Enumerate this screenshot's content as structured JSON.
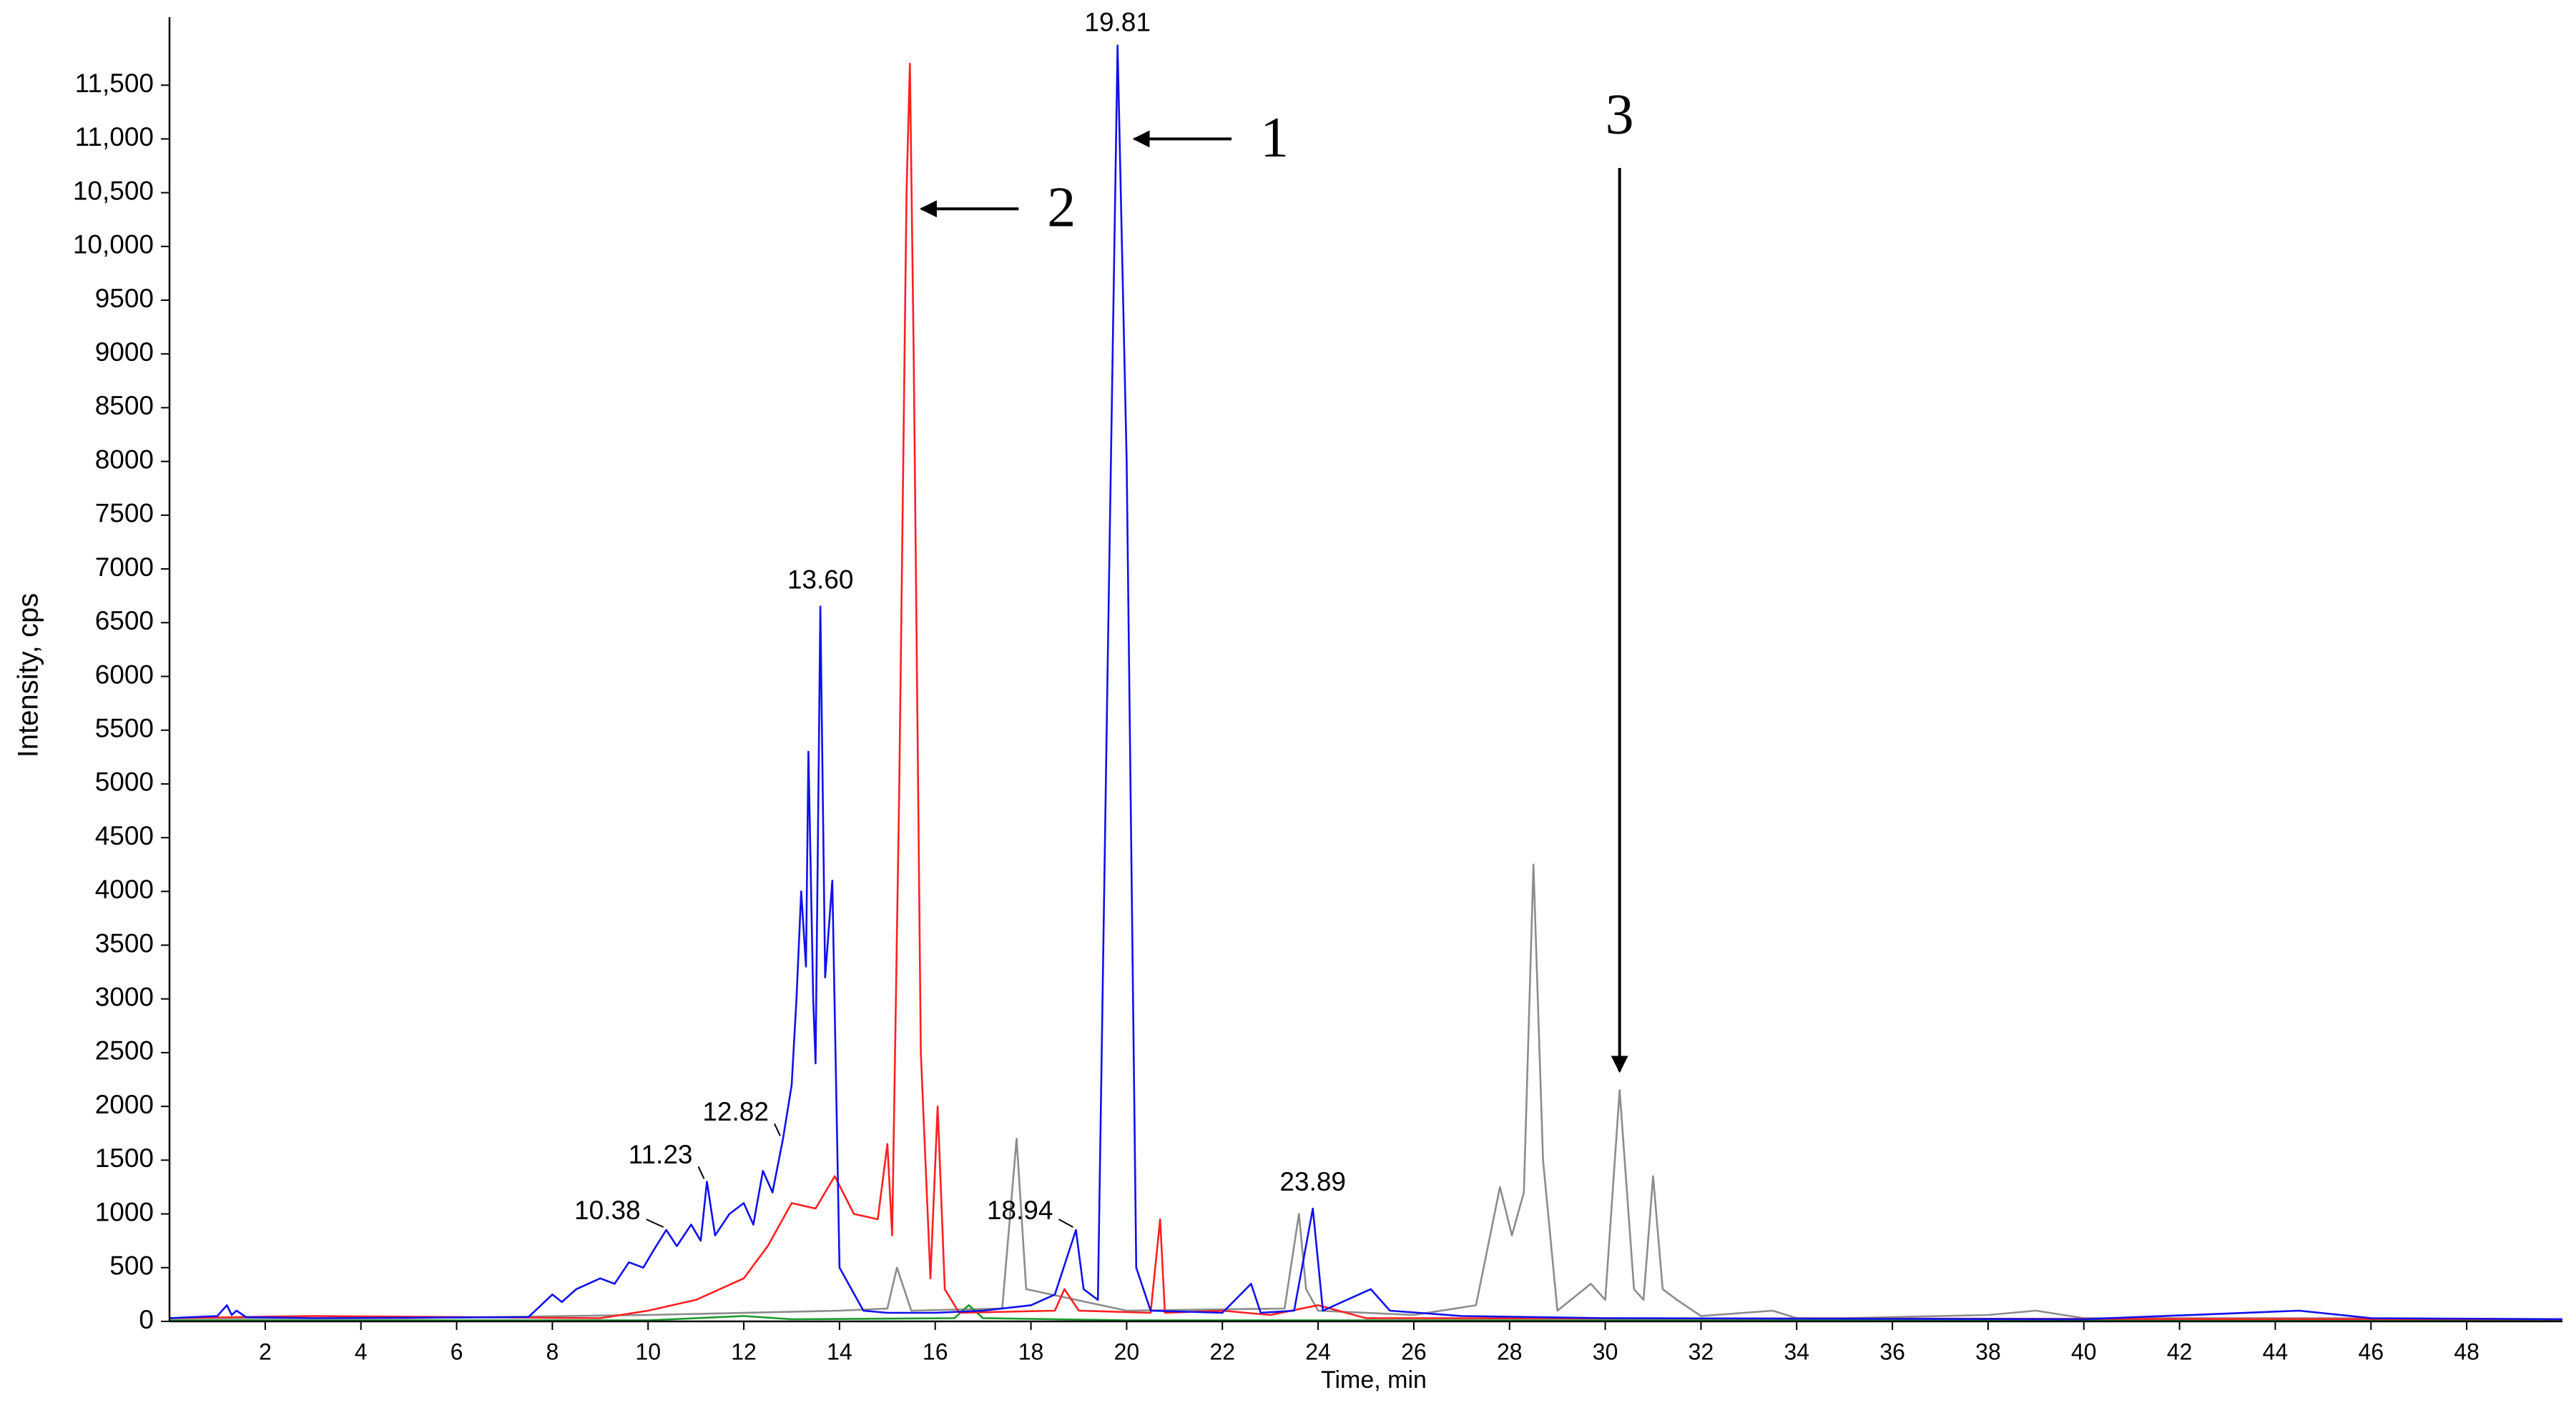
{
  "chart_data": {
    "type": "line",
    "xlabel": "Time, min",
    "ylabel": "Intensity, cps",
    "xlim": [
      0,
      50
    ],
    "ylim": [
      0,
      12000
    ],
    "xticks": [
      2,
      4,
      6,
      8,
      10,
      12,
      14,
      16,
      18,
      20,
      22,
      24,
      26,
      28,
      30,
      32,
      34,
      36,
      38,
      40,
      42,
      44,
      46,
      48
    ],
    "yticks": [
      0,
      500,
      1000,
      1500,
      2000,
      2500,
      3000,
      3500,
      4000,
      4500,
      5000,
      5500,
      6000,
      6500,
      7000,
      7500,
      8000,
      8500,
      9000,
      9500,
      {
        "value": 10000,
        "label": "10,000"
      },
      {
        "value": 10500,
        "label": "10,500"
      },
      {
        "value": 11000,
        "label": "11,000"
      },
      {
        "value": 11500,
        "label": "11,500"
      }
    ],
    "series": [
      {
        "color": "#8c8c8c",
        "x": [
          0,
          5,
          10,
          14,
          15.0,
          15.2,
          15.5,
          17.4,
          17.7,
          17.9,
          20,
          23.3,
          23.6,
          23.75,
          24,
          26,
          27.3,
          27.8,
          28.05,
          28.3,
          28.5,
          28.7,
          29.0,
          29.7,
          30.0,
          30.3,
          30.6,
          30.8,
          31.0,
          31.2,
          31.5,
          32,
          33.5,
          34,
          35,
          38,
          39,
          40,
          45,
          50
        ],
        "values": [
          30,
          30,
          60,
          100,
          120,
          500,
          100,
          120,
          1700,
          300,
          100,
          120,
          1000,
          300,
          100,
          60,
          150,
          1250,
          800,
          1200,
          4250,
          1500,
          100,
          350,
          200,
          2150,
          300,
          200,
          1350,
          300,
          200,
          50,
          100,
          30,
          30,
          60,
          100,
          30,
          30,
          20
        ]
      },
      {
        "color": "#1a9a2a",
        "x": [
          0,
          10,
          12,
          13,
          16.4,
          16.7,
          17.0,
          20,
          50
        ],
        "values": [
          10,
          10,
          50,
          20,
          30,
          150,
          30,
          10,
          10
        ]
      },
      {
        "color": "#ff2020",
        "x": [
          0,
          3,
          9,
          10,
          11,
          12,
          12.5,
          13,
          13.5,
          13.9,
          14.3,
          14.8,
          15.0,
          15.1,
          15.25,
          15.4,
          15.47,
          15.55,
          15.7,
          15.9,
          16.05,
          16.2,
          16.5,
          18.5,
          18.7,
          19,
          20.5,
          20.7,
          20.8,
          22,
          23,
          24,
          25,
          50
        ],
        "values": [
          30,
          50,
          30,
          100,
          200,
          400,
          700,
          1100,
          1050,
          1350,
          1000,
          950,
          1650,
          800,
          5000,
          10500,
          11700,
          9000,
          2500,
          400,
          2000,
          300,
          80,
          100,
          300,
          100,
          80,
          950,
          80,
          100,
          60,
          150,
          30,
          20
        ]
      },
      {
        "color": "#1010ee",
        "x": [
          0,
          1.0,
          1.2,
          1.3,
          1.4,
          1.6,
          3,
          7.5,
          8.0,
          8.2,
          8.5,
          9.0,
          9.3,
          9.6,
          9.9,
          10.1,
          10.38,
          10.6,
          10.9,
          11.1,
          11.23,
          11.4,
          11.7,
          12.0,
          12.2,
          12.4,
          12.6,
          12.82,
          13.0,
          13.1,
          13.2,
          13.3,
          13.35,
          13.45,
          13.5,
          13.6,
          13.7,
          13.75,
          13.85,
          14.0,
          14.5,
          15,
          16,
          17,
          18,
          18.5,
          18.94,
          19.1,
          19.4,
          19.6,
          19.81,
          20.0,
          20.2,
          20.5,
          22,
          22.6,
          22.8,
          23.5,
          23.89,
          24.1,
          25.1,
          25.5,
          27,
          30,
          40,
          44.5,
          46,
          50
        ],
        "values": [
          30,
          50,
          150,
          60,
          100,
          40,
          30,
          40,
          250,
          180,
          300,
          400,
          350,
          550,
          500,
          650,
          850,
          700,
          900,
          750,
          1300,
          800,
          1000,
          1100,
          900,
          1400,
          1200,
          1700,
          2200,
          3000,
          4000,
          3300,
          5300,
          3000,
          2400,
          6650,
          3200,
          3500,
          4100,
          500,
          100,
          80,
          80,
          100,
          150,
          250,
          850,
          300,
          200,
          6000,
          11870,
          8000,
          500,
          100,
          80,
          350,
          80,
          100,
          1050,
          100,
          300,
          100,
          50,
          30,
          20,
          100,
          30,
          20
        ]
      }
    ],
    "annotations": [
      {
        "x": 10.38,
        "y": 850,
        "label": "10.38"
      },
      {
        "x": 11.23,
        "y": 1300,
        "label": "11.23"
      },
      {
        "x": 12.82,
        "y": 1700,
        "label": "12.82"
      },
      {
        "x": 13.6,
        "y": 6650,
        "label": "13.60"
      },
      {
        "x": 18.94,
        "y": 850,
        "label": "18.94"
      },
      {
        "x": 19.81,
        "y": 11870,
        "label": "19.81"
      },
      {
        "x": 23.89,
        "y": 1050,
        "label": "23.89"
      }
    ],
    "callouts": [
      {
        "text": "1",
        "x": 20.1,
        "y": 11000
      },
      {
        "text": "2",
        "x": 15.65,
        "y": 10350
      },
      {
        "text": "3",
        "x": 30.3,
        "y": 2300
      }
    ]
  }
}
